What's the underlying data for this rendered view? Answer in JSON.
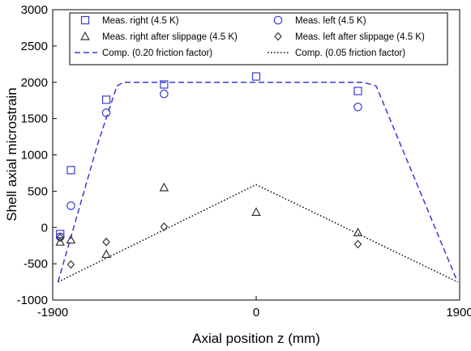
{
  "chart_data": {
    "type": "scatter",
    "xlabel": "Axial position z (mm)",
    "ylabel": "Shell axial microstrain",
    "xlim": [
      -1900,
      1900
    ],
    "ylim": [
      -1000,
      3000
    ],
    "x_ticks": [
      -1900,
      0,
      1900
    ],
    "x_tick_labels": [
      "-1900",
      "0",
      "1900"
    ],
    "y_ticks": [
      -1000,
      -500,
      0,
      500,
      1000,
      1500,
      2000,
      2500,
      3000
    ],
    "y_tick_labels": [
      "-1000",
      "-500",
      "0",
      "500",
      "1000",
      "1500",
      "2000",
      "2500",
      "3000"
    ],
    "grid": false,
    "legend_position": "top",
    "series": [
      {
        "name": "Meas. right (4.5 K)",
        "kind": "scatter",
        "marker": "square",
        "color": "#3a3ad6",
        "x": [
          -1830,
          -1730,
          -1400,
          -860,
          0,
          950
        ],
        "y": [
          -90,
          790,
          1760,
          1970,
          2080,
          1880
        ]
      },
      {
        "name": "Meas. left (4.5 K)",
        "kind": "scatter",
        "marker": "circle",
        "color": "#3a3ad6",
        "x": [
          -1830,
          -1730,
          -1400,
          -860,
          950
        ],
        "y": [
          -130,
          300,
          1580,
          1840,
          1660
        ]
      },
      {
        "name": "Meas. right after slippage (4.5 K)",
        "kind": "scatter",
        "marker": "triangle",
        "color": "#333333",
        "x": [
          -1830,
          -1730,
          -1400,
          -860,
          0,
          950
        ],
        "y": [
          -200,
          -170,
          -370,
          550,
          210,
          -70
        ]
      },
      {
        "name": "Meas. left after slippage (4.5 K)",
        "kind": "scatter",
        "marker": "diamond",
        "color": "#333333",
        "x": [
          -1830,
          -1730,
          -1400,
          -860,
          950
        ],
        "y": [
          -140,
          -510,
          -200,
          10,
          -230
        ]
      },
      {
        "name": "Comp. (0.20 friction factor)",
        "kind": "line",
        "dash": "dashed",
        "color": "#3a3ad6",
        "x": [
          -1850,
          -1480,
          -1300,
          -1240,
          1000,
          1120,
          1880
        ],
        "y": [
          -750,
          1150,
          1950,
          2000,
          2000,
          1950,
          -750
        ]
      },
      {
        "name": "Comp. (0.05 friction factor)",
        "kind": "line",
        "dash": "dotted",
        "color": "#111111",
        "x": [
          -1850,
          0,
          1880
        ],
        "y": [
          -750,
          590,
          -750
        ]
      }
    ]
  }
}
